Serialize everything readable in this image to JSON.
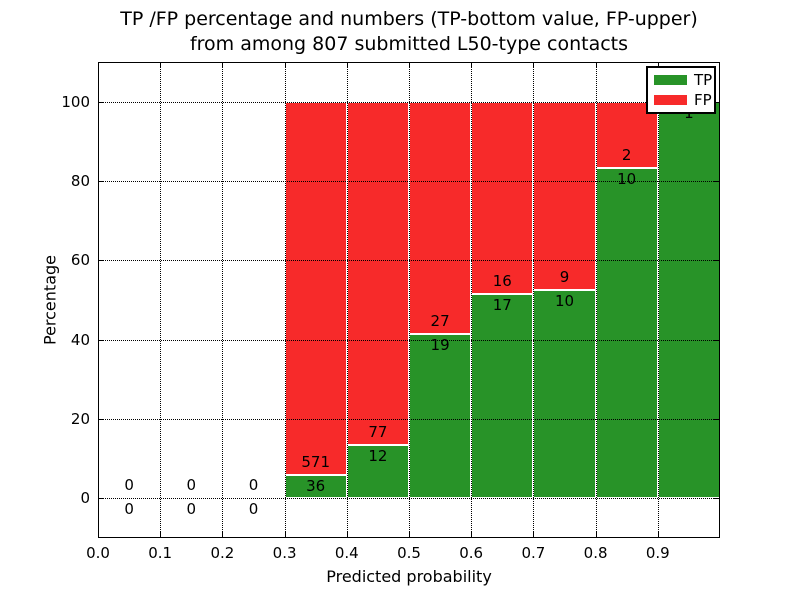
{
  "chart_data": {
    "type": "bar",
    "stacked": true,
    "title": "TP /FP percentage and numbers (TP-bottom value, FP-upper)",
    "subtitle": "from among 807 submitted L50-type contacts",
    "xlabel": "Predicted probability",
    "ylabel": "Percentage",
    "xlim": [
      0.0,
      1.0
    ],
    "ylim": [
      -10,
      110
    ],
    "xtick_values": [
      0.0,
      0.1,
      0.2,
      0.3,
      0.4,
      0.5,
      0.6,
      0.7,
      0.8,
      0.9
    ],
    "xtick_labels": [
      "0.0",
      "0.1",
      "0.2",
      "0.3",
      "0.4",
      "0.5",
      "0.6",
      "0.7",
      "0.8",
      "0.9"
    ],
    "ytick_values": [
      0,
      20,
      40,
      60,
      80,
      100
    ],
    "ytick_labels": [
      "0",
      "20",
      "40",
      "60",
      "80",
      "100"
    ],
    "grid": true,
    "grid_style": "dotted",
    "bar_width": 0.1,
    "colors": {
      "tp": "#289328",
      "fp": "#f72a2a",
      "bar_edge": "#ffffff",
      "grid": "#000000"
    },
    "legend": {
      "position": "upper right",
      "entries": [
        {
          "label": "TP",
          "color": "#289328"
        },
        {
          "label": "FP",
          "color": "#f72a2a"
        }
      ]
    },
    "bins": [
      {
        "x0": 0.0,
        "x1": 0.1,
        "tp": 0,
        "fp": 0
      },
      {
        "x0": 0.1,
        "x1": 0.2,
        "tp": 0,
        "fp": 0
      },
      {
        "x0": 0.2,
        "x1": 0.3,
        "tp": 0,
        "fp": 0
      },
      {
        "x0": 0.3,
        "x1": 0.4,
        "tp": 36,
        "fp": 571
      },
      {
        "x0": 0.4,
        "x1": 0.5,
        "tp": 12,
        "fp": 77
      },
      {
        "x0": 0.5,
        "x1": 0.6,
        "tp": 19,
        "fp": 27
      },
      {
        "x0": 0.6,
        "x1": 0.7,
        "tp": 17,
        "fp": 16
      },
      {
        "x0": 0.7,
        "x1": 0.8,
        "tp": 10,
        "fp": 9
      },
      {
        "x0": 0.8,
        "x1": 0.9,
        "tp": 10,
        "fp": 2
      },
      {
        "x0": 0.9,
        "x1": 1.0,
        "tp": 1,
        "fp": 0
      }
    ]
  }
}
